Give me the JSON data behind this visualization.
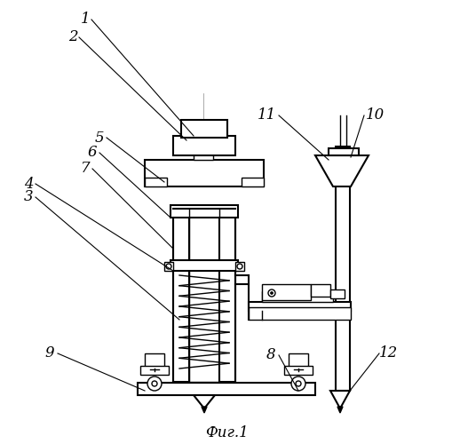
{
  "caption": "Фиг.1",
  "bg_color": "#ffffff",
  "line_color": "#000000",
  "label_fontsize": 12,
  "fig_width": 5.09,
  "fig_height": 5.0,
  "dpi": 100
}
